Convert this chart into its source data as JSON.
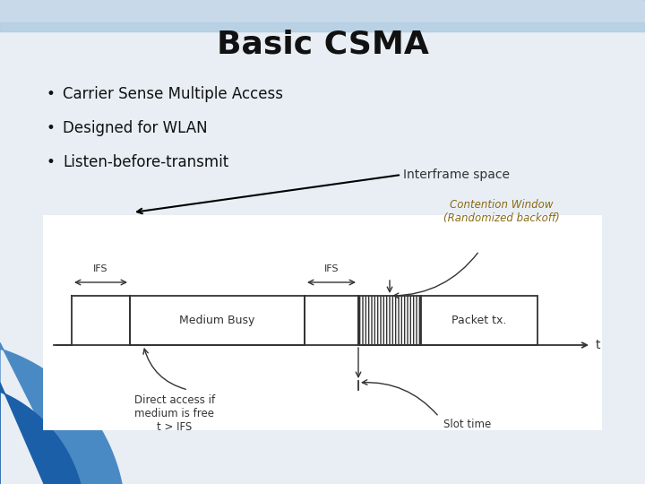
{
  "title": "Basic CSMA",
  "bullets": [
    "Carrier Sense Multiple Access",
    "Designed for WLAN",
    "Listen-before-transmit"
  ],
  "bg_color": "#e8eef4",
  "diagram_bg": "#f5f7fa",
  "title_color": "#111111",
  "bullet_color": "#111111",
  "lc": "#333333",
  "contention_color": "#8B6914",
  "ifs_label": "IFS",
  "medium_busy_label": "Medium Busy",
  "packet_label": "Packet tx.",
  "contention_label": "Contention Window\n(Randomized backoff)",
  "interframe_label": "Interframe space",
  "direct_access_label": "Direct access if\nmedium is free\nt > IFS",
  "slot_time_label": "Slot time",
  "t_label": "t",
  "top_blue": "#1a5fa8",
  "mid_blue": "#4a8ac4",
  "light_blue": "#a8c4e0"
}
